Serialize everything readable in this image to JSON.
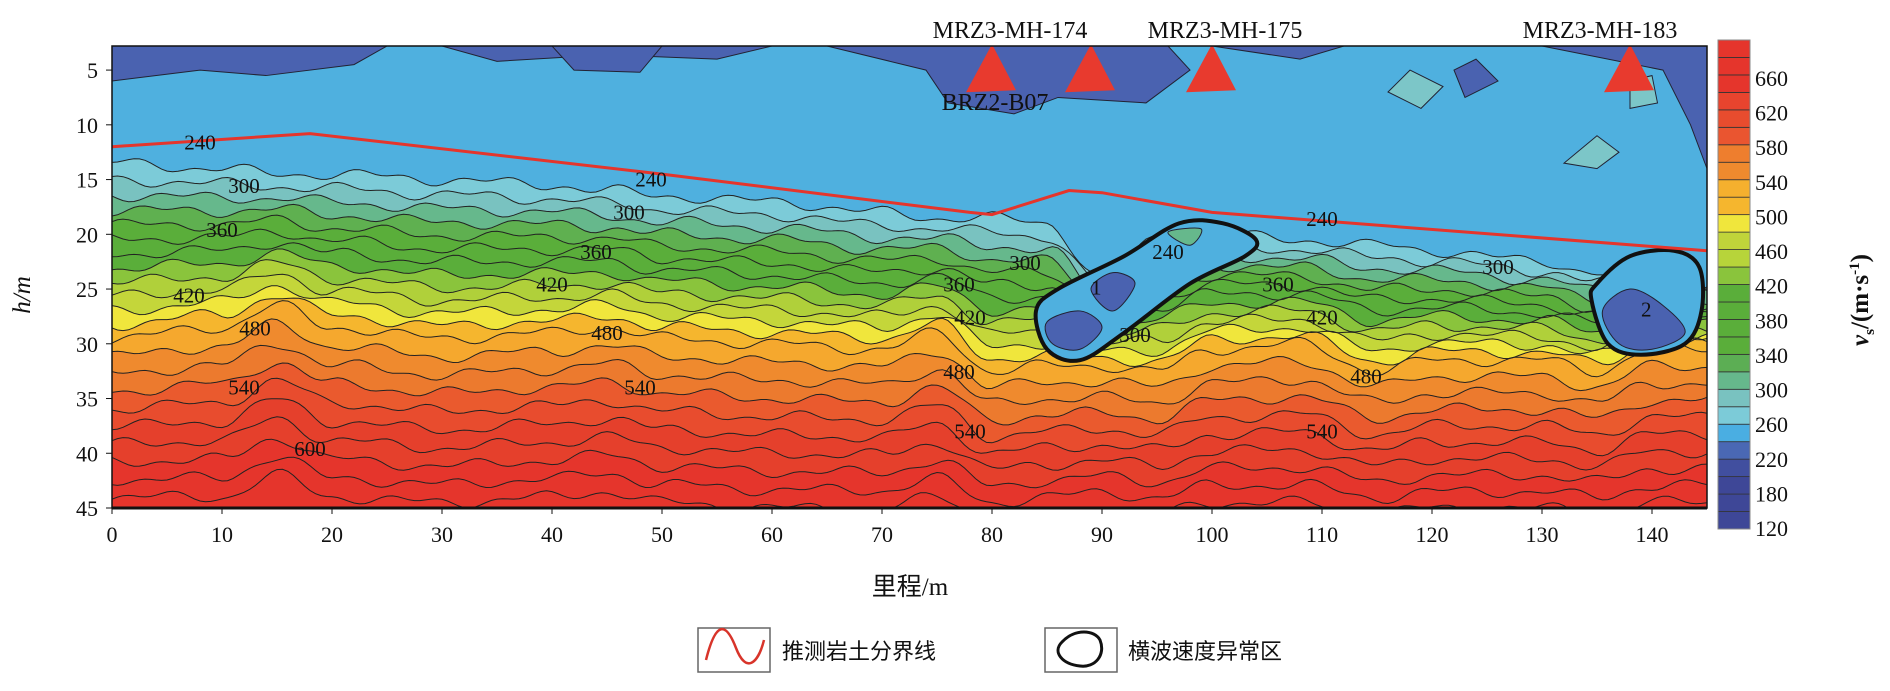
{
  "chart_data": {
    "type": "contour",
    "title": "",
    "xlabel": "里程/m",
    "ylabel": "h/m",
    "xlim": [
      0,
      145
    ],
    "ylim": [
      45,
      2.8
    ],
    "xticks": [
      "0",
      "10",
      "20",
      "30",
      "40",
      "50",
      "60",
      "70",
      "80",
      "90",
      "100",
      "110",
      "120",
      "130",
      "140"
    ],
    "yticks": [
      "5",
      "10",
      "15",
      "20",
      "25",
      "30",
      "35",
      "40",
      "45"
    ],
    "colorbar": {
      "label_main": "v",
      "label_sub": "s",
      "label_unit": "/(m·s",
      "label_sup": "-1",
      "label_close": ")",
      "ticks": [
        "660",
        "620",
        "580",
        "540",
        "500",
        "460",
        "420",
        "380",
        "340",
        "300",
        "260",
        "220",
        "180",
        "120"
      ],
      "colors_bottom_to_top": [
        "#3e4797",
        "#3e4797",
        "#3e4797",
        "#414f9f",
        "#4a68b4",
        "#4aaee2",
        "#7ccbd8",
        "#79c2c0",
        "#66b88c",
        "#5cae54",
        "#5aae3a",
        "#5aae3a",
        "#5aae3a",
        "#5aae3a",
        "#8ac43c",
        "#b7d43a",
        "#c0d43a",
        "#f0e63c",
        "#f5b62e",
        "#f5b02e",
        "#ef8a2e",
        "#ee7e2e",
        "#ea5530",
        "#e84c2e",
        "#e8442e",
        "#e5352c",
        "#e5352c",
        "#e5352c"
      ]
    },
    "contour_levels": [
      240,
      260,
      280,
      300,
      320,
      340,
      360,
      380,
      400,
      420,
      440,
      460,
      480,
      500,
      520,
      540,
      560,
      580,
      600,
      620,
      640,
      660
    ],
    "level_depth_profile": {
      "x": [
        0,
        10,
        15,
        20,
        30,
        40,
        45,
        50,
        60,
        70,
        75,
        80,
        85,
        90,
        95,
        100,
        108,
        115,
        120,
        130,
        135,
        140,
        145
      ],
      "depth_240": [
        13.5,
        14,
        14.5,
        14.5,
        15,
        15.5,
        16,
        16.5,
        17,
        18,
        18.5,
        18.5,
        19,
        24,
        20.5,
        20,
        20.5,
        21,
        21.5,
        22.5,
        23.5,
        25,
        24.5
      ],
      "depth_480": [
        29.5,
        28.5,
        26.5,
        28.5,
        29.5,
        29,
        28.5,
        29.5,
        30,
        30.5,
        29,
        32.5,
        32,
        32,
        32.5,
        30.5,
        30,
        32.5,
        31.5,
        31.5,
        32.5,
        30.5,
        30.5
      ],
      "depth_660": [
        44,
        44,
        42,
        44,
        44.5,
        44,
        43.5,
        44.5,
        45,
        45,
        44,
        46,
        45.5,
        45,
        45.5,
        44.5,
        44.5,
        45.5,
        45,
        45,
        45.5,
        44.5,
        44.5
      ]
    },
    "contour_labels": [
      {
        "text": "240",
        "x": 8,
        "y": 11.6
      },
      {
        "text": "300",
        "x": 12,
        "y": 15.6
      },
      {
        "text": "360",
        "x": 10,
        "y": 19.6
      },
      {
        "text": "420",
        "x": 7,
        "y": 25.6
      },
      {
        "text": "480",
        "x": 13,
        "y": 28.6
      },
      {
        "text": "540",
        "x": 12,
        "y": 34
      },
      {
        "text": "600",
        "x": 18,
        "y": 39.6
      },
      {
        "text": "240",
        "x": 49,
        "y": 15
      },
      {
        "text": "300",
        "x": 47,
        "y": 18
      },
      {
        "text": "360",
        "x": 44,
        "y": 21.6
      },
      {
        "text": "420",
        "x": 40,
        "y": 24.6
      },
      {
        "text": "480",
        "x": 45,
        "y": 29
      },
      {
        "text": "540",
        "x": 48,
        "y": 34
      },
      {
        "text": "360",
        "x": 77,
        "y": 24.6
      },
      {
        "text": "420",
        "x": 78,
        "y": 27.6
      },
      {
        "text": "480",
        "x": 77,
        "y": 32.6
      },
      {
        "text": "540",
        "x": 78,
        "y": 38
      },
      {
        "text": "300",
        "x": 83,
        "y": 22.6
      },
      {
        "text": "240",
        "x": 96,
        "y": 21.6
      },
      {
        "text": "300",
        "x": 93,
        "y": 29.2
      },
      {
        "text": "360",
        "x": 106,
        "y": 24.6
      },
      {
        "text": "420",
        "x": 110,
        "y": 27.6
      },
      {
        "text": "480",
        "x": 114,
        "y": 33
      },
      {
        "text": "540",
        "x": 110,
        "y": 38
      },
      {
        "text": "240",
        "x": 110,
        "y": 18.6
      },
      {
        "text": "300",
        "x": 126,
        "y": 23
      }
    ],
    "boundary_line": {
      "x": [
        0,
        18,
        50,
        78,
        80,
        87,
        90,
        100,
        145
      ],
      "y": [
        12,
        10.8,
        14.5,
        18,
        18.2,
        16,
        16.2,
        18,
        21.5
      ],
      "color": "#e5352c"
    },
    "anomaly_zones": [
      {
        "id": "1",
        "label_x": 89,
        "label_y": 25.5
      },
      {
        "id": "2",
        "label_x": 139,
        "label_y": 27.5
      }
    ],
    "stations": [
      {
        "name": "MRZ3-MH-174",
        "x": 80,
        "marker_x": [
          80,
          89
        ]
      },
      {
        "name": "MRZ3-MH-175",
        "x": 100,
        "marker_x": [
          100
        ]
      },
      {
        "name": "MRZ3-MH-183",
        "x": 138,
        "marker_x": [
          138
        ]
      },
      {
        "name": "BRZ2-B07",
        "x": 80,
        "marker_x": []
      }
    ],
    "marker_color": "#e83a2e",
    "legend": [
      {
        "label": "推测岩土分界线",
        "type": "red-line"
      },
      {
        "label": "横波速度异常区",
        "type": "black-outline"
      }
    ]
  }
}
